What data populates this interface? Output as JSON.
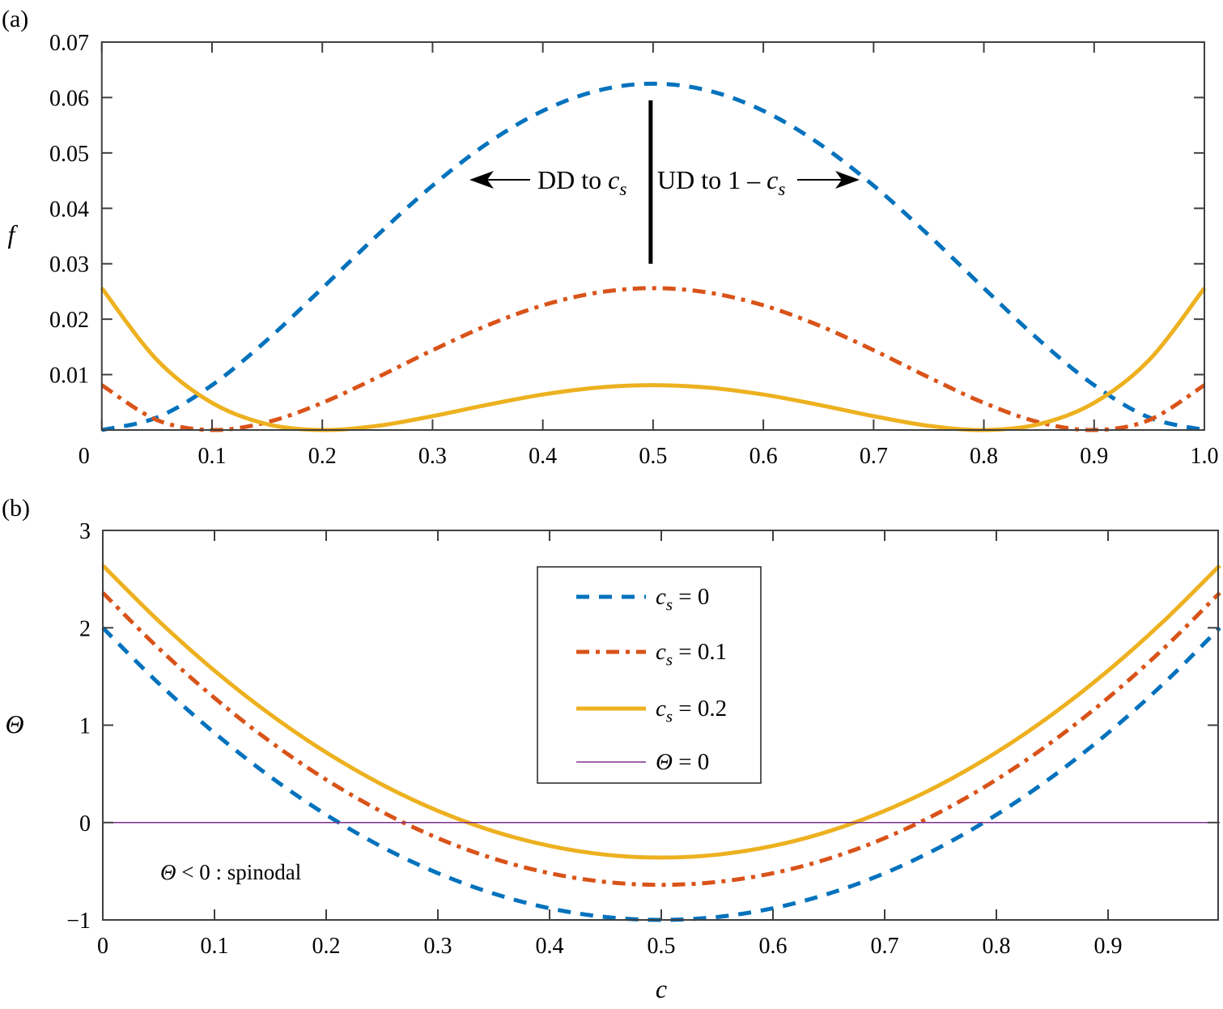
{
  "colors": {
    "cs0": "#0072BD",
    "cs01": "#D95319",
    "cs02": "#EDB120",
    "theta0": "#7E2F8E",
    "axis": "#404040"
  },
  "chart_data": [
    {
      "type": "line",
      "panel_label": "(a)",
      "ylabel": "f",
      "xlabel": "",
      "xlim": [
        0,
        1
      ],
      "ylim": [
        0,
        0.07
      ],
      "xticks": [
        0,
        0.1,
        0.2,
        0.3,
        0.4,
        0.5,
        0.6,
        0.7,
        0.8,
        0.9,
        1.0
      ],
      "xtick_labels": [
        "0",
        "0.1",
        "0.2",
        "0.3",
        "0.4",
        "0.5",
        "0.6",
        "0.7",
        "0.8",
        "0.9",
        "1.0"
      ],
      "yticks": [
        0.01,
        0.02,
        0.03,
        0.04,
        0.05,
        0.06,
        0.07
      ],
      "ytick_labels": [
        "0.01",
        "0.02",
        "0.03",
        "0.04",
        "0.05",
        "0.06",
        "0.07"
      ],
      "x": [
        0,
        0.05,
        0.1,
        0.15,
        0.2,
        0.25,
        0.3,
        0.35,
        0.4,
        0.45,
        0.5,
        0.55,
        0.6,
        0.65,
        0.7,
        0.75,
        0.8,
        0.85,
        0.9,
        0.95,
        1
      ],
      "series": [
        {
          "name": "c_s = 0",
          "style": "dashed",
          "color_key": "cs0",
          "values": [
            0,
            0.002256,
            0.0081,
            0.016256,
            0.0256,
            0.035156,
            0.0441,
            0.051756,
            0.0576,
            0.061256,
            0.0625,
            0.061256,
            0.0576,
            0.051756,
            0.0441,
            0.035156,
            0.0256,
            0.016256,
            0.0081,
            0.002256,
            0
          ]
        },
        {
          "name": "c_s = 0.1",
          "style": "dashdot",
          "color_key": "cs01",
          "values": [
            0.0081,
            0.001806,
            0,
            0.001406,
            0.0049,
            0.009506,
            0.0144,
            0.018906,
            0.0225,
            0.024806,
            0.0256,
            0.024806,
            0.0225,
            0.018906,
            0.0144,
            0.009506,
            0.0049,
            0.001406,
            0,
            0.001806,
            0.0081
          ]
        },
        {
          "name": "c_s = 0.2",
          "style": "solid",
          "color_key": "cs02",
          "values": [
            0.0256,
            0.012656,
            0.0049,
            0.001056,
            0,
            0.000756,
            0.0025,
            0.004556,
            0.0064,
            0.007656,
            0.0081,
            0.007656,
            0.0064,
            0.004556,
            0.0025,
            0.000756,
            0,
            0.001056,
            0.0049,
            0.012656,
            0.0256
          ]
        }
      ],
      "annotations": {
        "divider_x": 0.5,
        "divider_range": [
          0.03,
          0.0595
        ],
        "left": {
          "text": "DD to ",
          "var": "c",
          "sub": "s",
          "arrow_direction": "left"
        },
        "right": {
          "text": "UD to 1 – ",
          "var": "c",
          "sub": "s",
          "arrow_direction": "right"
        }
      }
    },
    {
      "type": "line",
      "panel_label": "(b)",
      "ylabel": "Θ",
      "xlabel": "c",
      "xlim": [
        0,
        1
      ],
      "ylim": [
        -1,
        3
      ],
      "xticks": [
        0,
        0.1,
        0.2,
        0.3,
        0.4,
        0.5,
        0.6,
        0.7,
        0.8,
        0.9
      ],
      "xtick_labels": [
        "0",
        "0.1",
        "0.2",
        "0.3",
        "0.4",
        "0.5",
        "0.6",
        "0.7",
        "0.8",
        "0.9"
      ],
      "yticks": [
        -1,
        0,
        1,
        2,
        3
      ],
      "ytick_labels": [
        "−1",
        "0",
        "1",
        "2",
        "3"
      ],
      "x": [
        0,
        0.05,
        0.1,
        0.15,
        0.2,
        0.25,
        0.3,
        0.35,
        0.4,
        0.45,
        0.5,
        0.55,
        0.6,
        0.65,
        0.7,
        0.75,
        0.8,
        0.85,
        0.9,
        0.95,
        1
      ],
      "series": [
        {
          "name": "c_s = 0",
          "style": "dashed",
          "color_key": "cs0",
          "values": [
            2,
            1.43,
            0.92,
            0.47,
            0.08,
            -0.25,
            -0.52,
            -0.73,
            -0.88,
            -0.97,
            -1,
            -0.97,
            -0.88,
            -0.73,
            -0.52,
            -0.25,
            0.08,
            0.47,
            0.92,
            1.43,
            2
          ]
        },
        {
          "name": "c_s = 0.1",
          "style": "dashdot",
          "color_key": "cs01",
          "values": [
            2.36,
            1.79,
            1.28,
            0.83,
            0.44,
            0.11,
            -0.16,
            -0.37,
            -0.52,
            -0.61,
            -0.64,
            -0.61,
            -0.52,
            -0.37,
            -0.16,
            0.11,
            0.44,
            0.83,
            1.28,
            1.79,
            2.36
          ]
        },
        {
          "name": "c_s = 0.2",
          "style": "solid",
          "color_key": "cs02",
          "values": [
            2.64,
            2.07,
            1.56,
            1.11,
            0.72,
            0.39,
            0.12,
            -0.09,
            -0.24,
            -0.33,
            -0.36,
            -0.33,
            -0.24,
            -0.09,
            0.12,
            0.39,
            0.72,
            1.11,
            1.56,
            2.07,
            2.64
          ]
        },
        {
          "name": "Θ = 0",
          "style": "thin",
          "color_key": "theta0",
          "values": [
            0,
            0,
            0,
            0,
            0,
            0,
            0,
            0,
            0,
            0,
            0,
            0,
            0,
            0,
            0,
            0,
            0,
            0,
            0,
            0,
            0
          ]
        }
      ],
      "legend": {
        "placement": "top-center",
        "entries": [
          {
            "var": "c",
            "sub": "s",
            "rest": " = 0"
          },
          {
            "var": "c",
            "sub": "s",
            "rest": " = 0.1"
          },
          {
            "var": "c",
            "sub": "s",
            "rest": " = 0.2"
          },
          {
            "var": "Θ",
            "sub": "",
            "rest": " = 0"
          }
        ]
      },
      "annotation": {
        "var": "Θ",
        "rest": " < 0 : spinodal"
      }
    }
  ]
}
